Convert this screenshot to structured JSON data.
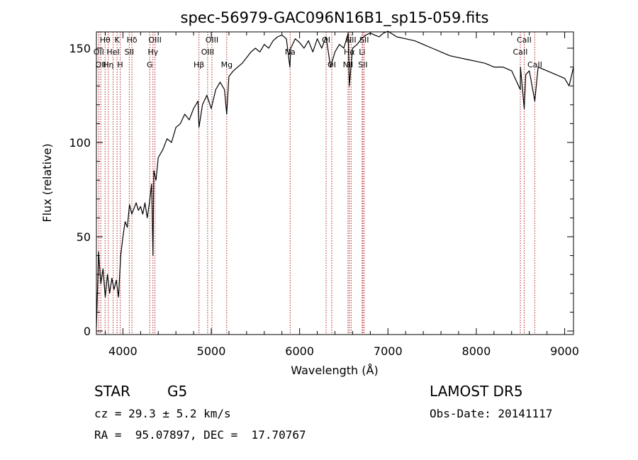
{
  "chart_data": {
    "type": "line",
    "title": "spec-56979-GAC096N16B1_sp15-059.fits",
    "xlabel": "Wavelength (Å)",
    "ylabel": "Flux (relative)",
    "xlim": [
      3700,
      9100
    ],
    "ylim": [
      0,
      160
    ],
    "xticks": [
      4000,
      5000,
      6000,
      7000,
      8000,
      9000
    ],
    "yticks": [
      0,
      50,
      100,
      150
    ],
    "grid": false,
    "line_color": "#000000",
    "marker_color": "#b22222",
    "series": [
      {
        "x": [
          3700,
          3725,
          3750,
          3775,
          3800,
          3825,
          3850,
          3875,
          3900,
          3925,
          3950,
          3975,
          4000,
          4025,
          4050,
          4075,
          4100,
          4125,
          4150,
          4175,
          4200,
          4225,
          4250,
          4275,
          4300,
          4325,
          4340,
          4350,
          4375,
          4400,
          4450,
          4500,
          4550,
          4600,
          4650,
          4700,
          4750,
          4800,
          4850,
          4861,
          4900,
          4950,
          5000,
          5050,
          5100,
          5150,
          5175,
          5200,
          5250,
          5300,
          5350,
          5400,
          5450,
          5500,
          5550,
          5600,
          5650,
          5700,
          5750,
          5800,
          5850,
          5890,
          5900,
          5950,
          6000,
          6050,
          6100,
          6150,
          6200,
          6250,
          6300,
          6350,
          6400,
          6450,
          6500,
          6550,
          6563,
          6600,
          6650,
          6700,
          6750,
          6800,
          6850,
          6900,
          6950,
          7000,
          7100,
          7200,
          7300,
          7400,
          7500,
          7600,
          7700,
          7800,
          7900,
          8000,
          8100,
          8200,
          8300,
          8400,
          8498,
          8500,
          8542,
          8560,
          8600,
          8662,
          8700,
          8800,
          8900,
          9000,
          9050,
          9100
        ],
        "y": [
          2,
          42,
          25,
          33,
          18,
          30,
          20,
          28,
          22,
          27,
          18,
          40,
          50,
          58,
          55,
          67,
          62,
          65,
          68,
          64,
          66,
          62,
          68,
          60,
          68,
          78,
          40,
          85,
          80,
          92,
          96,
          102,
          100,
          108,
          110,
          115,
          112,
          118,
          122,
          108,
          120,
          125,
          118,
          128,
          132,
          128,
          115,
          135,
          138,
          140,
          142,
          145,
          148,
          150,
          148,
          152,
          150,
          154,
          156,
          157,
          155,
          140,
          150,
          155,
          153,
          150,
          154,
          148,
          155,
          150,
          156,
          140,
          148,
          152,
          150,
          158,
          130,
          150,
          152,
          155,
          157,
          158,
          157,
          156,
          158,
          159,
          156,
          155,
          154,
          152,
          150,
          148,
          146,
          145,
          144,
          143,
          142,
          140,
          140,
          138,
          128,
          140,
          118,
          136,
          138,
          122,
          140,
          138,
          136,
          134,
          130,
          140
        ]
      }
    ],
    "lines": [
      {
        "x": 3727,
        "label": "OII",
        "row": 2
      },
      {
        "x": 3750,
        "label": "OII",
        "row": 3
      },
      {
        "x": 3798,
        "label": "Hθ",
        "row": 1
      },
      {
        "x": 3835,
        "label": "Hη",
        "row": 3
      },
      {
        "x": 3889,
        "label": "HeI",
        "row": 2
      },
      {
        "x": 3934,
        "label": "K",
        "row": 1
      },
      {
        "x": 3969,
        "label": "H",
        "row": 3
      },
      {
        "x": 4072,
        "label": "SII",
        "row": 2
      },
      {
        "x": 4102,
        "label": "Hδ",
        "row": 1
      },
      {
        "x": 4304,
        "label": "G",
        "row": 3
      },
      {
        "x": 4340,
        "label": "Hγ",
        "row": 2
      },
      {
        "x": 4363,
        "label": "OIII",
        "row": 1
      },
      {
        "x": 4861,
        "label": "Hβ",
        "row": 3
      },
      {
        "x": 4959,
        "label": "OIII",
        "row": 2
      },
      {
        "x": 5007,
        "label": "OIII",
        "row": 1
      },
      {
        "x": 5175,
        "label": "Mg",
        "row": 3
      },
      {
        "x": 5893,
        "label": "Na",
        "row": 2
      },
      {
        "x": 6300,
        "label": "OI",
        "row": 1
      },
      {
        "x": 6364,
        "label": "OI",
        "row": 3
      },
      {
        "x": 6548,
        "label": "NII",
        "row": 3
      },
      {
        "x": 6563,
        "label": "Hα",
        "row": 2
      },
      {
        "x": 6583,
        "label": "NII",
        "row": 1
      },
      {
        "x": 6708,
        "label": "Li",
        "row": 2
      },
      {
        "x": 6716,
        "label": "SII",
        "row": 3
      },
      {
        "x": 6731,
        "label": "SII",
        "row": 1
      },
      {
        "x": 8498,
        "label": "CaII",
        "row": 2
      },
      {
        "x": 8542,
        "label": "CaII",
        "row": 1
      },
      {
        "x": 8662,
        "label": "CaII",
        "row": 3
      }
    ]
  },
  "info": {
    "object_class": "STAR",
    "subclass": "G5",
    "survey": "LAMOST DR5",
    "redshift_line": "cz = 29.3 ± 5.2 km/s",
    "obs_date": "Obs-Date: 20141117",
    "coords": "RA =  95.07897, DEC =  17.70767"
  }
}
